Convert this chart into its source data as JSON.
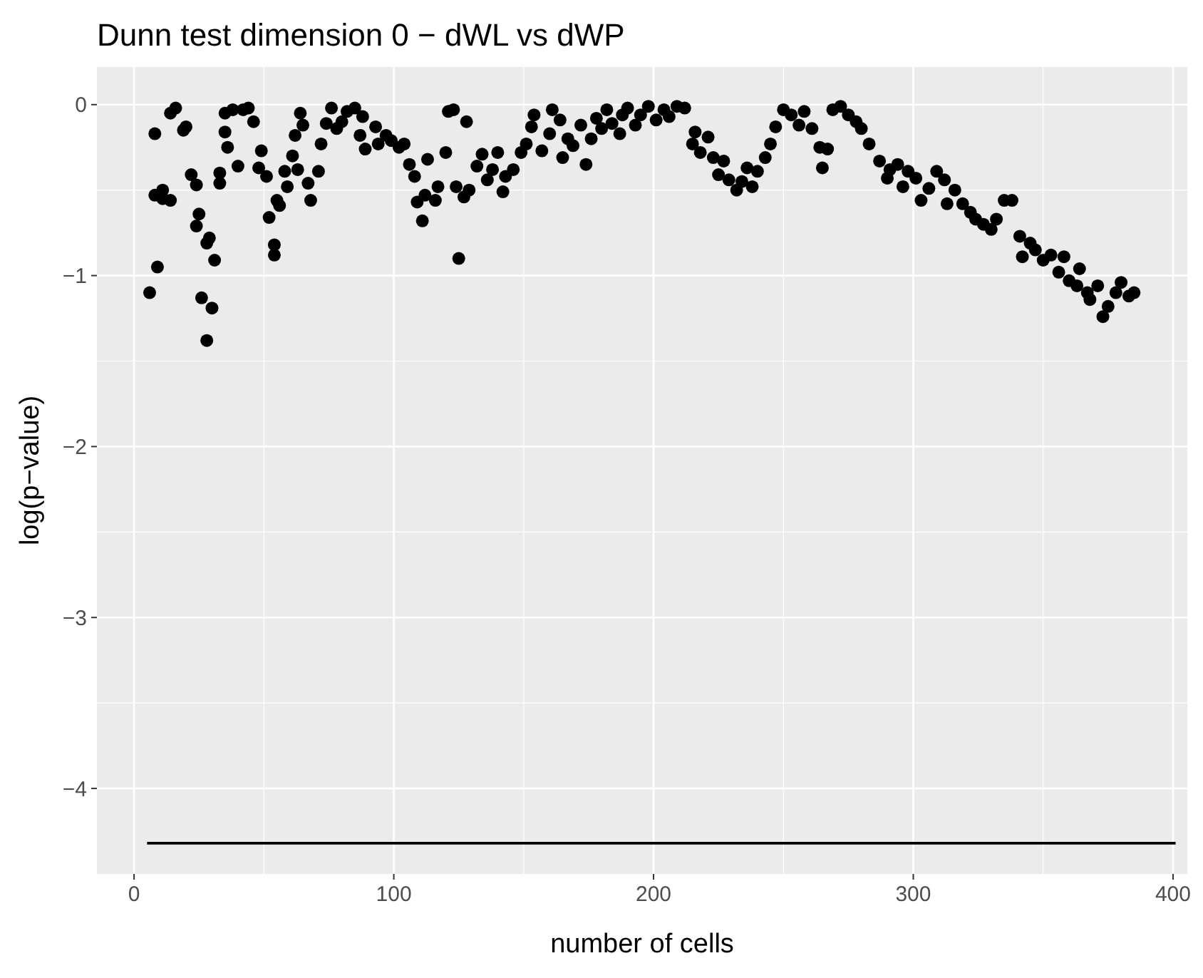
{
  "chart_data": {
    "type": "scatter",
    "title": "Dunn test dimension 0 − dWL vs dWP",
    "xlabel": "number of cells",
    "ylabel": "log(p−value)",
    "xlim": [
      -14.3,
      405.5
    ],
    "ylim": [
      -4.5,
      0.22
    ],
    "xticks": [
      0,
      100,
      200,
      300,
      400
    ],
    "yticks": [
      -4,
      -3,
      -2,
      -1,
      0
    ],
    "grid": true,
    "series": [
      {
        "marker": "circle",
        "color": "#000000",
        "x": [
          6,
          8,
          8,
          9,
          11,
          11,
          14,
          14,
          16,
          19,
          20,
          22,
          24,
          24,
          25,
          26,
          28,
          30,
          29,
          28,
          31,
          33,
          33,
          35,
          35,
          36,
          38,
          40,
          42,
          44,
          46,
          48,
          49,
          51,
          52,
          54,
          54,
          56,
          55,
          58,
          59,
          61,
          62,
          63,
          64,
          65,
          67,
          68,
          71,
          72,
          74,
          76,
          78,
          80,
          82,
          85,
          87,
          88,
          89,
          93,
          94,
          97,
          99,
          102,
          104,
          106,
          108,
          109,
          111,
          112,
          113,
          116,
          117,
          120,
          121,
          123,
          124,
          125,
          127,
          129,
          128,
          132,
          134,
          136,
          138,
          140,
          142,
          143,
          146,
          149,
          151,
          153,
          154,
          157,
          160,
          161,
          164,
          165,
          167,
          169,
          172,
          174,
          176,
          178,
          180,
          182,
          184,
          187,
          188,
          190,
          193,
          195,
          198,
          201,
          204,
          206,
          209,
          212,
          215,
          216,
          218,
          221,
          223,
          225,
          227,
          229,
          232,
          234,
          236,
          238,
          240,
          243,
          245,
          247,
          250,
          253,
          256,
          258,
          261,
          264,
          265,
          267,
          269,
          272,
          275,
          278,
          280,
          283,
          287,
          290,
          291,
          294,
          296,
          298,
          301,
          303,
          306,
          309,
          312,
          313,
          316,
          319,
          322,
          324,
          327,
          330,
          332,
          335,
          338,
          341,
          342,
          345,
          347,
          350,
          353,
          356,
          358,
          360,
          363,
          364,
          367,
          368,
          371,
          373,
          375,
          378,
          380,
          383,
          385
        ],
        "values": [
          -1.1,
          -0.53,
          -0.17,
          -0.95,
          -0.5,
          -0.55,
          -0.56,
          -0.05,
          -0.02,
          -0.15,
          -0.13,
          -0.41,
          -0.47,
          -0.71,
          -0.64,
          -1.13,
          -1.38,
          -1.19,
          -0.78,
          -0.81,
          -0.91,
          -0.46,
          -0.4,
          -0.16,
          -0.05,
          -0.25,
          -0.03,
          -0.36,
          -0.03,
          -0.02,
          -0.1,
          -0.37,
          -0.27,
          -0.42,
          -0.66,
          -0.82,
          -0.88,
          -0.59,
          -0.56,
          -0.39,
          -0.48,
          -0.3,
          -0.18,
          -0.38,
          -0.05,
          -0.12,
          -0.46,
          -0.56,
          -0.39,
          -0.23,
          -0.11,
          -0.02,
          -0.14,
          -0.1,
          -0.04,
          -0.02,
          -0.18,
          -0.07,
          -0.26,
          -0.13,
          -0.23,
          -0.18,
          -0.21,
          -0.25,
          -0.23,
          -0.35,
          -0.42,
          -0.57,
          -0.68,
          -0.53,
          -0.32,
          -0.56,
          -0.48,
          -0.28,
          -0.04,
          -0.03,
          -0.48,
          -0.9,
          -0.54,
          -0.5,
          -0.1,
          -0.36,
          -0.29,
          -0.44,
          -0.38,
          -0.28,
          -0.51,
          -0.42,
          -0.38,
          -0.28,
          -0.23,
          -0.13,
          -0.06,
          -0.27,
          -0.17,
          -0.03,
          -0.09,
          -0.31,
          -0.2,
          -0.24,
          -0.12,
          -0.35,
          -0.2,
          -0.08,
          -0.14,
          -0.03,
          -0.11,
          -0.17,
          -0.06,
          -0.02,
          -0.12,
          -0.06,
          -0.01,
          -0.09,
          -0.03,
          -0.07,
          -0.01,
          -0.02,
          -0.23,
          -0.16,
          -0.28,
          -0.19,
          -0.31,
          -0.41,
          -0.33,
          -0.44,
          -0.5,
          -0.45,
          -0.37,
          -0.48,
          -0.39,
          -0.31,
          -0.23,
          -0.13,
          -0.03,
          -0.06,
          -0.12,
          -0.04,
          -0.14,
          -0.25,
          -0.37,
          -0.26,
          -0.03,
          -0.01,
          -0.06,
          -0.1,
          -0.14,
          -0.23,
          -0.33,
          -0.43,
          -0.38,
          -0.35,
          -0.48,
          -0.39,
          -0.43,
          -0.56,
          -0.49,
          -0.39,
          -0.44,
          -0.58,
          -0.5,
          -0.58,
          -0.63,
          -0.67,
          -0.7,
          -0.73,
          -0.67,
          -0.56,
          -0.56,
          -0.77,
          -0.89,
          -0.81,
          -0.85,
          -0.91,
          -0.88,
          -0.98,
          -0.89,
          -1.03,
          -1.06,
          -0.96,
          -1.1,
          -1.14,
          -1.06,
          -1.24,
          -1.18,
          -1.1,
          -1.04,
          -1.12,
          -1.1
        ]
      },
      {
        "type": "line",
        "color": "#000000",
        "x": [
          5,
          401
        ],
        "values": [
          -4.32,
          -4.32
        ]
      }
    ]
  }
}
